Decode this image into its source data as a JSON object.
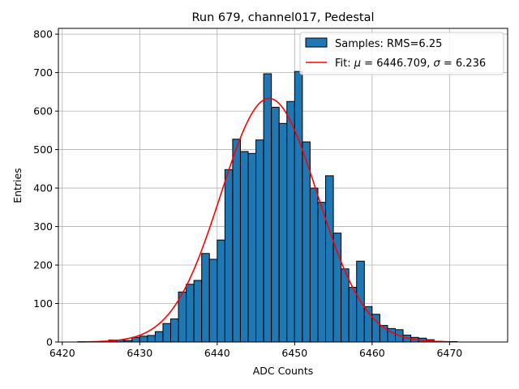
{
  "chart_data": {
    "type": "bar",
    "title": "Run 679, channel017, Pedestal",
    "xlabel": "ADC Counts",
    "ylabel": "Entries",
    "xlim": [
      6419.5,
      6477.5
    ],
    "ylim": [
      0,
      815
    ],
    "xticks": [
      6420,
      6430,
      6440,
      6450,
      6460,
      6470
    ],
    "yticks": [
      0,
      100,
      200,
      300,
      400,
      500,
      600,
      700,
      800
    ],
    "grid": true,
    "legend_position": "top-right",
    "colors": {
      "bars": "#1f77b4",
      "fit": "#ff0000",
      "edge": "#000000",
      "grid": "#b0b0b0"
    },
    "histogram": {
      "name": "Samples: RMS=6.25",
      "bin_edges": [
        6422,
        6423,
        6424,
        6425,
        6426,
        6427,
        6428,
        6429,
        6430,
        6431,
        6432,
        6433,
        6434,
        6435,
        6436,
        6437,
        6438,
        6439,
        6440,
        6441,
        6442,
        6443,
        6444,
        6445,
        6446,
        6447,
        6448,
        6449,
        6450,
        6451,
        6452,
        6453,
        6454,
        6455,
        6456,
        6457,
        6458,
        6459,
        6460,
        6461,
        6462,
        6463,
        6464,
        6465,
        6466,
        6467,
        6468,
        6469,
        6470,
        6471,
        6472,
        6473,
        6474,
        6475
      ],
      "counts": [
        1,
        1,
        1,
        2,
        5,
        5,
        4,
        12,
        15,
        17,
        27,
        48,
        60,
        130,
        150,
        160,
        230,
        215,
        265,
        448,
        527,
        495,
        490,
        525,
        697,
        610,
        568,
        625,
        703,
        520,
        400,
        363,
        432,
        283,
        190,
        142,
        210,
        92,
        72,
        43,
        35,
        32,
        18,
        12,
        10,
        6,
        2,
        1,
        1,
        0,
        0,
        0,
        0
      ]
    },
    "fit": {
      "name": "Fit: μ = 6446.709, σ = 6.236",
      "label_prefix": "Fit: ",
      "mu_symbol": "μ",
      "mu_text": " = 6446.709, ",
      "sigma_symbol": "σ",
      "sigma_text": " = 6.236",
      "mu": 6446.709,
      "sigma": 6.236,
      "amplitude": 633,
      "x_range": [
        6422,
        6470
      ]
    }
  }
}
